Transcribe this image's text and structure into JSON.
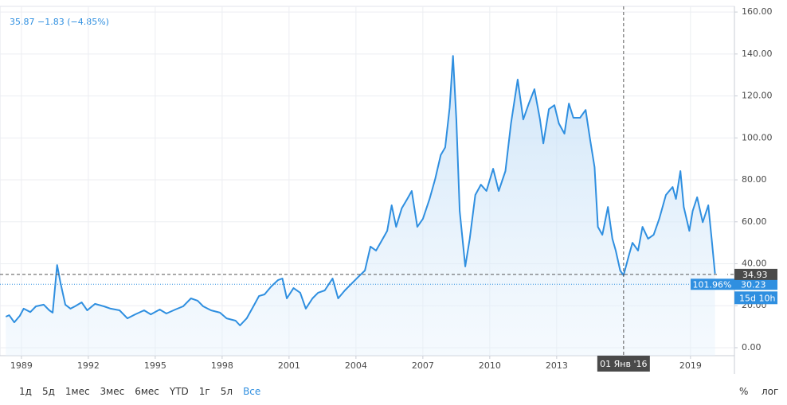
{
  "chart_data": {
    "type": "area",
    "header": "35.87 −1.83 (−4.85%)",
    "x": [
      1988.3,
      1988.45,
      1988.68,
      1988.93,
      1989.1,
      1989.4,
      1989.65,
      1990.0,
      1990.25,
      1990.4,
      1990.6,
      1990.75,
      1990.97,
      1991.2,
      1991.4,
      1991.7,
      1991.95,
      1992.3,
      1992.7,
      1993.0,
      1993.4,
      1993.75,
      1994.1,
      1994.5,
      1994.8,
      1995.2,
      1995.5,
      1995.9,
      1996.25,
      1996.6,
      1996.9,
      1997.15,
      1997.5,
      1997.9,
      1998.2,
      1998.6,
      1998.8,
      1999.1,
      1999.4,
      1999.65,
      1999.9,
      2000.2,
      2000.5,
      2000.7,
      2000.9,
      2001.2,
      2001.5,
      2001.75,
      2002.05,
      2002.3,
      2002.6,
      2002.95,
      2003.2,
      2003.5,
      2003.75,
      2004.1,
      2004.4,
      2004.65,
      2004.9,
      2005.2,
      2005.4,
      2005.6,
      2005.8,
      2006.05,
      2006.3,
      2006.5,
      2006.75,
      2007.0,
      2007.3,
      2007.55,
      2007.8,
      2008.0,
      2008.2,
      2008.35,
      2008.5,
      2008.65,
      2008.9,
      2009.1,
      2009.35,
      2009.6,
      2009.85,
      2010.15,
      2010.4,
      2010.7,
      2010.95,
      2011.25,
      2011.5,
      2011.75,
      2012.0,
      2012.25,
      2012.4,
      2012.65,
      2012.9,
      2013.1,
      2013.35,
      2013.55,
      2013.75,
      2014.05,
      2014.3,
      2014.5,
      2014.7,
      2014.85,
      2015.05,
      2015.3,
      2015.5,
      2015.65,
      2015.85,
      2016.0,
      2016.25,
      2016.4,
      2016.65,
      2016.85,
      2017.1,
      2017.35,
      2017.6,
      2017.9,
      2018.2,
      2018.35,
      2018.55,
      2018.7,
      2018.95,
      2019.1,
      2019.3,
      2019.55,
      2019.8,
      2019.95,
      2020.1
    ],
    "series": [
      {
        "color": "#2f8fe0",
        "values": [
          14.8,
          15.5,
          12.1,
          15.2,
          18.6,
          17,
          19.7,
          20.5,
          17.8,
          16.7,
          39.4,
          31,
          20.5,
          18.6,
          19.7,
          21.6,
          17.8,
          20.9,
          19.7,
          18.6,
          17.8,
          14,
          15.9,
          17.8,
          15.9,
          18.2,
          16.3,
          18.2,
          19.7,
          23.5,
          22.4,
          19.7,
          17.8,
          16.7,
          14,
          12.9,
          10.6,
          14,
          19.7,
          24.6,
          25.4,
          29.2,
          32.2,
          33,
          23.5,
          28.4,
          26.2,
          18.6,
          23.5,
          26.2,
          27.3,
          33,
          23.5,
          27.3,
          30,
          33.7,
          36.8,
          48.2,
          46.3,
          51.9,
          55.7,
          67.9,
          57.6,
          66.4,
          70.9,
          74.7,
          57.6,
          61.4,
          70.9,
          80.4,
          91.8,
          95.5,
          114.5,
          139.1,
          108.8,
          65.2,
          38.7,
          51.9,
          72.8,
          77.7,
          74.7,
          85.3,
          74.7,
          84.2,
          106.9,
          127.8,
          108.8,
          116.4,
          123.2,
          108.8,
          97.4,
          113.7,
          115.6,
          106.9,
          102,
          116.4,
          109.6,
          109.6,
          113.3,
          99.3,
          86.1,
          57.6,
          53.8,
          67.1,
          51.9,
          46.3,
          36.8,
          34.5,
          44.4,
          50,
          46.3,
          57.6,
          51.9,
          53.8,
          61.4,
          72.8,
          76.6,
          70.9,
          84.2,
          67.1,
          55.7,
          65.2,
          71.7,
          59.8,
          67.9,
          51.9,
          35.3
        ]
      }
    ],
    "xlim": [
      1988.04,
      2020.97
    ],
    "xticks": [
      1989,
      1992,
      1995,
      1998,
      2001,
      2004,
      2007,
      2010,
      2013,
      2019
    ],
    "ylim": [
      -3.8,
      162.7
    ],
    "yticks": [
      {
        "value": 0,
        "label": "0.00"
      },
      {
        "value": 20,
        "label": "20.00"
      },
      {
        "value": 40,
        "label": "40.00"
      },
      {
        "value": 60,
        "label": "60.00"
      },
      {
        "value": 80,
        "label": "80.00"
      },
      {
        "value": 100,
        "label": "100.00"
      },
      {
        "value": 120,
        "label": "120.00"
      },
      {
        "value": 140,
        "label": "140.00"
      },
      {
        "value": 160,
        "label": "160.00"
      }
    ],
    "grid": true,
    "crosshair": {
      "x": 2016.0,
      "x_label": "01 Янв '16",
      "y": 34.93
    },
    "last_price": {
      "value": 30.23,
      "percent_label": "101.96%",
      "countdown": "15d 10h"
    },
    "ranges": [
      "1д",
      "5д",
      "1мес",
      "3мес",
      "6мес",
      "YTD",
      "1г",
      "5л",
      "Все"
    ],
    "active_range": 8,
    "options": [
      "%",
      "лог"
    ]
  }
}
